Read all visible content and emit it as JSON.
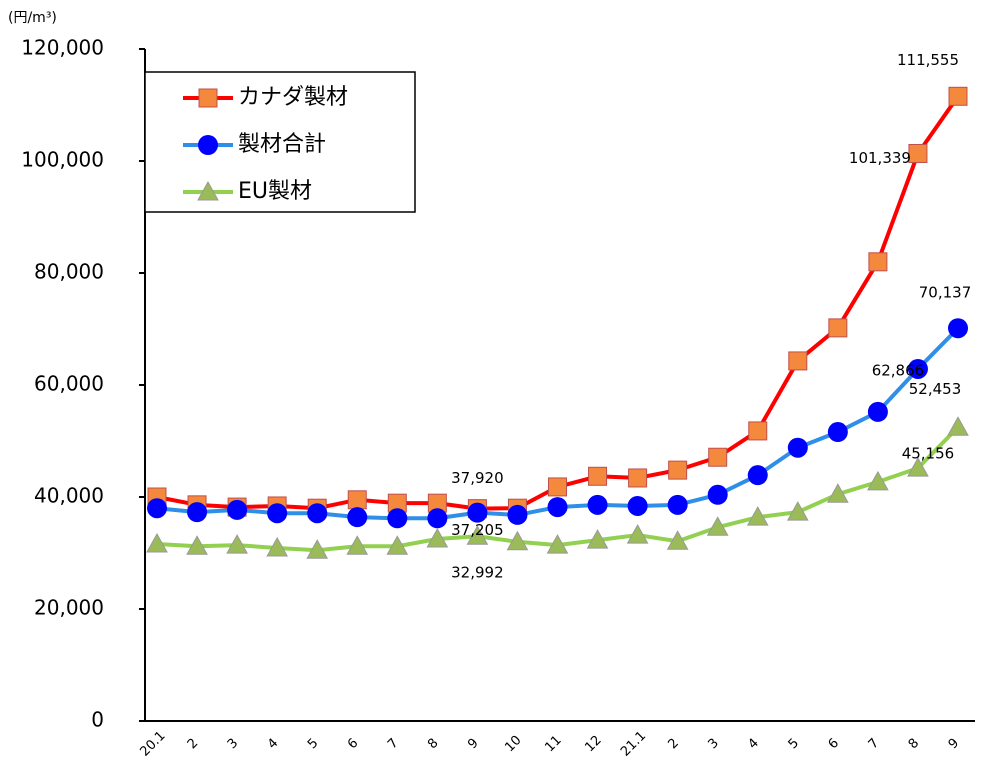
{
  "chart_data": {
    "type": "line",
    "y_label": "(円/m³)",
    "categories": [
      "20.1",
      "2",
      "3",
      "4",
      "5",
      "6",
      "7",
      "8",
      "9",
      "10",
      "11",
      "12",
      "21.1",
      "2",
      "3",
      "4",
      "5",
      "6",
      "7",
      "8",
      "9"
    ],
    "series": [
      {
        "name": "カナダ製材",
        "color": "#ff0000",
        "marker": "square",
        "marker_color": "#f4883c",
        "values": [
          40000,
          38600,
          38200,
          38400,
          38000,
          39500,
          38900,
          38900,
          37920,
          38000,
          41800,
          43700,
          43400,
          44800,
          47100,
          51800,
          64300,
          70200,
          82000,
          101339,
          111555
        ],
        "value_labels": [
          null,
          null,
          null,
          null,
          null,
          null,
          null,
          null,
          "37,920",
          null,
          null,
          null,
          null,
          null,
          null,
          null,
          null,
          null,
          null,
          "101,339",
          "111,555"
        ]
      },
      {
        "name": "製材合計",
        "color": "#2f8ee8",
        "marker": "circle",
        "marker_color": "#0000ff",
        "values": [
          38000,
          37300,
          37700,
          37100,
          37100,
          36400,
          36200,
          36200,
          37205,
          36800,
          38200,
          38600,
          38400,
          38600,
          40400,
          43900,
          48800,
          51600,
          55200,
          62866,
          70137
        ],
        "value_labels": [
          null,
          null,
          null,
          null,
          null,
          null,
          null,
          null,
          "37,205",
          null,
          null,
          null,
          null,
          null,
          null,
          null,
          null,
          null,
          null,
          "62,866",
          "70,137"
        ]
      },
      {
        "name": "EU製材",
        "color": "#92d050",
        "marker": "triangle",
        "marker_color": "#9bbb59",
        "values": [
          31600,
          31200,
          31400,
          30900,
          30500,
          31200,
          31200,
          32500,
          32992,
          32000,
          31400,
          32300,
          33200,
          32100,
          34600,
          36400,
          37300,
          40500,
          42700,
          45156,
          52453
        ],
        "value_labels": [
          null,
          null,
          null,
          null,
          null,
          null,
          null,
          null,
          "32,992",
          null,
          null,
          null,
          null,
          null,
          null,
          null,
          null,
          null,
          null,
          "45,156",
          "52,453"
        ]
      }
    ],
    "ylim": [
      0,
      120000
    ],
    "yticks": [
      0,
      {
        "value": 20000,
        "label": "20,000"
      },
      {
        "value": 40000,
        "label": "40,000"
      },
      {
        "value": 60000,
        "label": "60,000"
      },
      {
        "value": 80000,
        "label": "80,000"
      },
      {
        "value": 100000,
        "label": "100,000"
      },
      {
        "value": 120000,
        "label": "120,000"
      }
    ],
    "legend": "upper left"
  }
}
